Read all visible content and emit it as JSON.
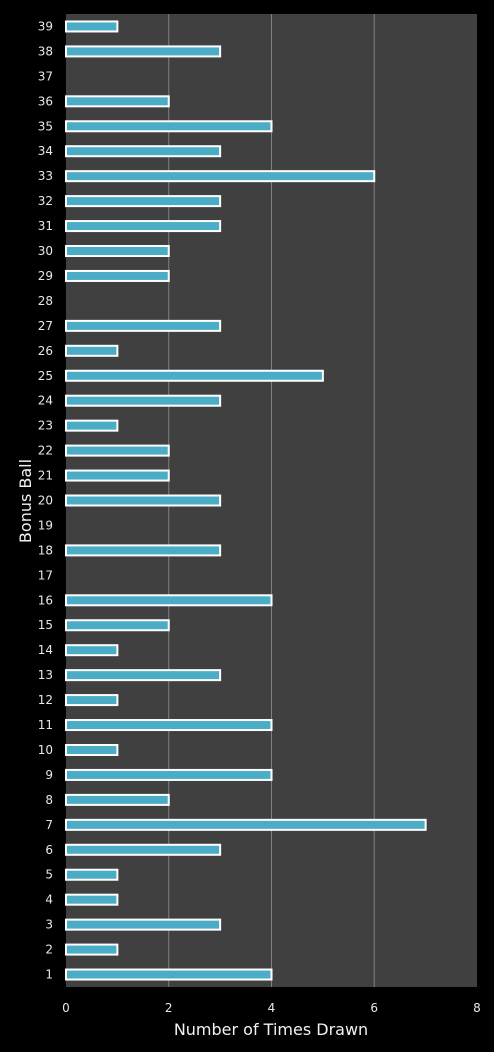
{
  "chart_data": {
    "type": "bar",
    "orientation": "horizontal",
    "title": "",
    "xlabel": "Number of Times Drawn",
    "ylabel": "Bonus Ball",
    "xlim": [
      0,
      8
    ],
    "xticks": [
      0,
      2,
      4,
      6,
      8
    ],
    "grid": true,
    "colors": {
      "background": "#000000",
      "plot_area": "#404040",
      "bar_fill": "#4bacc6",
      "bar_border": "#ffffff",
      "gridline": "#808080",
      "text": "#e8e8e8"
    },
    "categories": [
      "1",
      "2",
      "3",
      "4",
      "5",
      "6",
      "7",
      "8",
      "9",
      "10",
      "11",
      "12",
      "13",
      "14",
      "15",
      "16",
      "17",
      "18",
      "19",
      "20",
      "21",
      "22",
      "23",
      "24",
      "25",
      "26",
      "27",
      "28",
      "29",
      "30",
      "31",
      "32",
      "33",
      "34",
      "35",
      "36",
      "37",
      "38",
      "39"
    ],
    "values": [
      4,
      1,
      3,
      1,
      1,
      3,
      7,
      2,
      4,
      1,
      4,
      1,
      3,
      1,
      2,
      4,
      0,
      3,
      0,
      3,
      2,
      2,
      1,
      3,
      5,
      1,
      3,
      0,
      2,
      2,
      3,
      3,
      6,
      3,
      4,
      2,
      0,
      3,
      1
    ]
  }
}
